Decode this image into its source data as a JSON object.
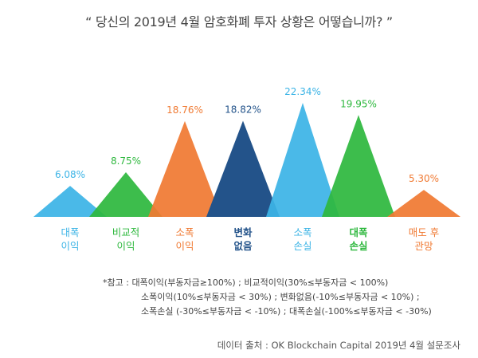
{
  "title": "“ 당신의 2019년 4월 암호화폐 투자 상황은 어떻습니까? ”",
  "chart_data": {
    "type": "area",
    "title": "“ 당신의 2019년 4월 암호화폐 투자 상황은 어떻습니까? ”",
    "unit": "%",
    "categories": [
      [
        "대폭",
        "이익"
      ],
      [
        "비교적",
        "이익"
      ],
      [
        "소폭",
        "이익"
      ],
      [
        "변화",
        "없음"
      ],
      [
        "소폭",
        "손실"
      ],
      [
        "대폭",
        "손실"
      ],
      [
        "매도 후",
        "관망"
      ]
    ],
    "values": [
      6.08,
      8.75,
      18.76,
      18.82,
      22.34,
      19.95,
      5.3
    ],
    "value_labels": [
      "6.08%",
      "8.75%",
      "18.76%",
      "18.82%",
      "22.34%",
      "19.95%",
      "5.30%"
    ],
    "colors": [
      "#3cb4e6",
      "#2eb83e",
      "#f07a33",
      "#23538a",
      "#3cb4e6",
      "#2eb83e",
      "#f07a33"
    ]
  },
  "notes": [
    "*참고 : 대폭이익(부동자금≥100%) ; 비교적이익(30%≤부동자금 < 100%)",
    "소폭이익(10%≤부동자금 < 30%) ; 변화없음(-10%≤부동자금 < 10%) ;",
    "소폭손실 (-30%≤부동자금 < -10%) ; 대폭손실(-100%≤부동자금 < -30%)"
  ],
  "source": "데이터 출처 : OK Blockchain Capital 2019년 4월 설문조사"
}
